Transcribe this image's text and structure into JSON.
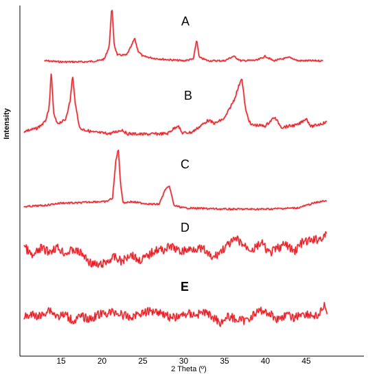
{
  "chart_data": {
    "type": "line",
    "title": "",
    "xlabel": "2 Theta (º)",
    "ylabel": "Intensity",
    "xlim": [
      10,
      48
    ],
    "x_ticks": [
      15,
      20,
      25,
      30,
      35,
      40,
      45
    ],
    "grid": false,
    "legend": "none",
    "series_color": "#e8171f",
    "series": [
      {
        "name": "A",
        "label_bold": false,
        "points": [
          [
            13,
            0.02
          ],
          [
            15,
            0
          ],
          [
            18,
            0
          ],
          [
            19.5,
            0.02
          ],
          [
            20.3,
            0.05
          ],
          [
            20.9,
            0.28
          ],
          [
            21.2,
            1.0
          ],
          [
            21.5,
            0.3
          ],
          [
            21.9,
            0.12
          ],
          [
            23,
            0.12
          ],
          [
            23.6,
            0.28
          ],
          [
            24,
            0.42
          ],
          [
            24.4,
            0.2
          ],
          [
            25,
            0.1
          ],
          [
            26.5,
            0.06
          ],
          [
            28,
            0.04
          ],
          [
            30,
            0.02
          ],
          [
            31.2,
            0.05
          ],
          [
            31.6,
            0.4
          ],
          [
            31.9,
            0.08
          ],
          [
            33,
            0.02
          ],
          [
            35,
            0.02
          ],
          [
            36.1,
            0.1
          ],
          [
            37,
            0.02
          ],
          [
            39,
            0.03
          ],
          [
            40,
            0.1
          ],
          [
            41,
            0.02
          ],
          [
            43,
            0.08
          ],
          [
            44,
            0.02
          ],
          [
            47,
            0.02
          ]
        ]
      },
      {
        "name": "B",
        "label_bold": false,
        "points": [
          [
            10.5,
            0.08
          ],
          [
            12,
            0.12
          ],
          [
            13,
            0.22
          ],
          [
            13.5,
            0.4
          ],
          [
            13.8,
            1.0
          ],
          [
            14.1,
            0.35
          ],
          [
            14.5,
            0.2
          ],
          [
            15.5,
            0.25
          ],
          [
            16.1,
            0.55
          ],
          [
            16.4,
            0.95
          ],
          [
            16.8,
            0.45
          ],
          [
            17.3,
            0.12
          ],
          [
            19,
            0.06
          ],
          [
            21,
            0.04
          ],
          [
            22.5,
            0.1
          ],
          [
            23,
            0.04
          ],
          [
            25,
            0.03
          ],
          [
            28,
            0.04
          ],
          [
            29.3,
            0.17
          ],
          [
            29.8,
            0.05
          ],
          [
            31,
            0.06
          ],
          [
            33,
            0.25
          ],
          [
            33.8,
            0.2
          ],
          [
            35,
            0.28
          ],
          [
            36.2,
            0.58
          ],
          [
            37.1,
            0.93
          ],
          [
            37.6,
            0.4
          ],
          [
            38.2,
            0.18
          ],
          [
            40,
            0.16
          ],
          [
            41.1,
            0.3
          ],
          [
            42,
            0.14
          ],
          [
            44,
            0.18
          ],
          [
            45,
            0.28
          ],
          [
            45.6,
            0.15
          ],
          [
            47.5,
            0.22
          ]
        ]
      },
      {
        "name": "C",
        "label_bold": false,
        "points": [
          [
            10.5,
            0.06
          ],
          [
            13,
            0.08
          ],
          [
            15,
            0.12
          ],
          [
            17,
            0.12
          ],
          [
            19,
            0.14
          ],
          [
            20.5,
            0.14
          ],
          [
            21.3,
            0.2
          ],
          [
            21.7,
            0.8
          ],
          [
            22,
            1.0
          ],
          [
            22.3,
            0.4
          ],
          [
            22.6,
            0.12
          ],
          [
            23.5,
            0.14
          ],
          [
            26,
            0.1
          ],
          [
            27,
            0.1
          ],
          [
            27.8,
            0.35
          ],
          [
            28.3,
            0.38
          ],
          [
            28.8,
            0.08
          ],
          [
            30,
            0.04
          ],
          [
            35,
            0.02
          ],
          [
            40,
            0.02
          ],
          [
            44,
            0.04
          ],
          [
            46,
            0.12
          ],
          [
            47.5,
            0.16
          ]
        ]
      },
      {
        "name": "D",
        "label_bold": false,
        "points": [
          [
            10.5,
            0.65
          ],
          [
            11.5,
            0.35
          ],
          [
            12.5,
            0.6
          ],
          [
            13.5,
            0.5
          ],
          [
            14.5,
            0.62
          ],
          [
            15.5,
            0.45
          ],
          [
            16.5,
            0.55
          ],
          [
            17.5,
            0.45
          ],
          [
            18.5,
            0.2
          ],
          [
            19.5,
            0.1
          ],
          [
            20.5,
            0.2
          ],
          [
            21.5,
            0.35
          ],
          [
            22.5,
            0.22
          ],
          [
            23.5,
            0.45
          ],
          [
            24.5,
            0.25
          ],
          [
            25.5,
            0.35
          ],
          [
            26.5,
            0.55
          ],
          [
            27.5,
            0.55
          ],
          [
            28.5,
            0.65
          ],
          [
            29.5,
            0.5
          ],
          [
            30.5,
            0.55
          ],
          [
            31.5,
            0.6
          ],
          [
            32.5,
            0.55
          ],
          [
            33.5,
            0.3
          ],
          [
            34.5,
            0.5
          ],
          [
            35.5,
            0.7
          ],
          [
            36.5,
            0.85
          ],
          [
            37.5,
            0.65
          ],
          [
            38.5,
            0.55
          ],
          [
            39.5,
            0.75
          ],
          [
            40.5,
            0.45
          ],
          [
            41.5,
            0.6
          ],
          [
            42.5,
            0.7
          ],
          [
            43.5,
            0.5
          ],
          [
            44.5,
            0.75
          ],
          [
            45.5,
            0.8
          ],
          [
            46.5,
            0.85
          ],
          [
            47.5,
            0.95
          ]
        ]
      },
      {
        "name": "E",
        "label_bold": true,
        "points": [
          [
            10.5,
            0.45
          ],
          [
            11.5,
            0.5
          ],
          [
            12.5,
            0.45
          ],
          [
            13.5,
            0.7
          ],
          [
            14.5,
            0.45
          ],
          [
            15.5,
            0.5
          ],
          [
            16.5,
            0.3
          ],
          [
            17.5,
            0.45
          ],
          [
            18.5,
            0.35
          ],
          [
            19.5,
            0.5
          ],
          [
            20.5,
            0.55
          ],
          [
            21.5,
            0.6
          ],
          [
            22.5,
            0.5
          ],
          [
            23.5,
            0.4
          ],
          [
            24.5,
            0.55
          ],
          [
            25.5,
            0.6
          ],
          [
            26.5,
            0.65
          ],
          [
            27.5,
            0.55
          ],
          [
            28.5,
            0.4
          ],
          [
            29.5,
            0.45
          ],
          [
            30.5,
            0.55
          ],
          [
            31.5,
            0.5
          ],
          [
            32.5,
            0.6
          ],
          [
            33.5,
            0.45
          ],
          [
            34.5,
            0.25
          ],
          [
            35.5,
            0.45
          ],
          [
            36.5,
            0.35
          ],
          [
            37.5,
            0.3
          ],
          [
            38.5,
            0.5
          ],
          [
            39.5,
            0.65
          ],
          [
            40.5,
            0.55
          ],
          [
            41.5,
            0.35
          ],
          [
            42.5,
            0.5
          ],
          [
            43.5,
            0.4
          ],
          [
            44.5,
            0.55
          ],
          [
            45.5,
            0.5
          ],
          [
            46.5,
            0.45
          ],
          [
            47.3,
            0.85
          ],
          [
            47.6,
            0.3
          ]
        ]
      }
    ]
  }
}
